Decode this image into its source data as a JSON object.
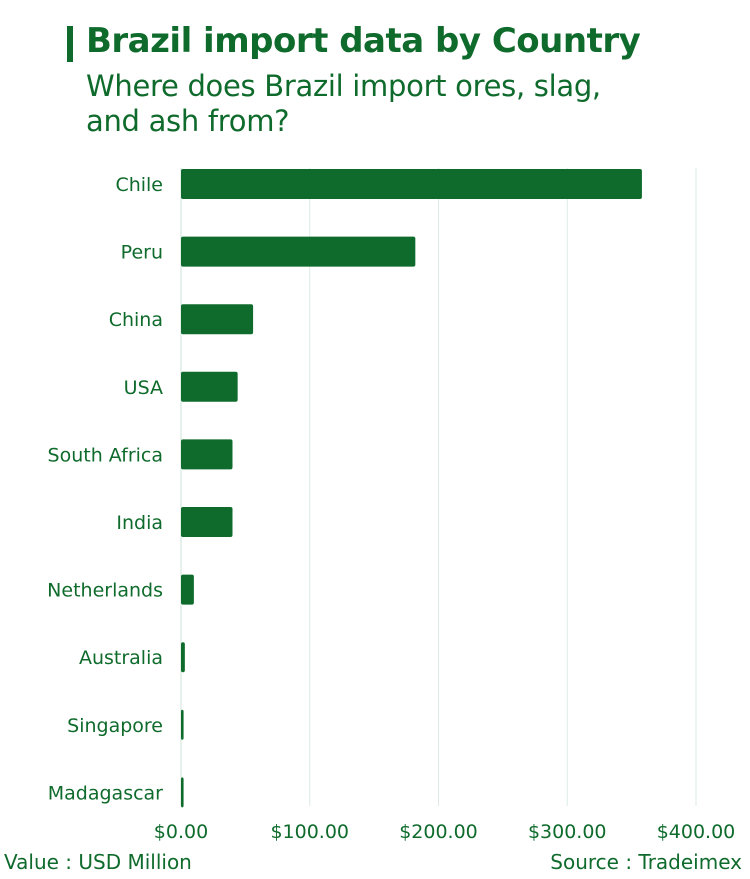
{
  "title": "Brazil import data by Country",
  "subtitle": "Where does Brazil import ores, slag, and ash from?",
  "footer": {
    "value_note": "Value : USD Million",
    "source": "Source : Tradeimex"
  },
  "colors": {
    "bar": "#0f6b2c",
    "text": "#0f6b2c",
    "grid": "#dcebe3",
    "axis": "#cfe3d8"
  },
  "chart_data": {
    "type": "bar",
    "orientation": "horizontal",
    "categories": [
      "Chile",
      "Peru",
      "China",
      "USA",
      "South Africa",
      "India",
      "Netherlands",
      "Australia",
      "Singapore",
      "Madagascar"
    ],
    "values": [
      358,
      182,
      56,
      44,
      40,
      40,
      10,
      3,
      2,
      2
    ],
    "xlim": [
      0,
      400
    ],
    "xticks": [
      0,
      100,
      200,
      300,
      400
    ],
    "xtick_labels": [
      "$0.00",
      "$100.00",
      "$200.00",
      "$300.00",
      "$400.00"
    ],
    "grid": true,
    "title": "Brazil import data by Country",
    "xlabel": "",
    "ylabel": ""
  }
}
